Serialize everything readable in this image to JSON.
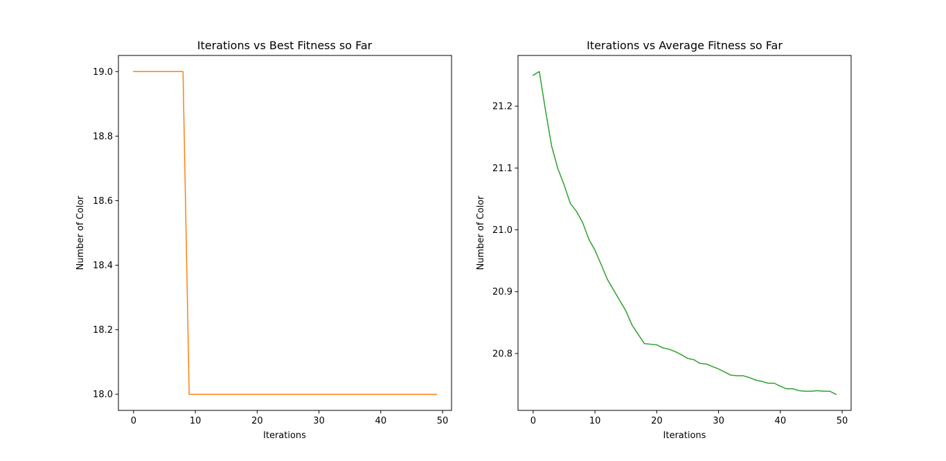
{
  "chart_data": [
    {
      "type": "line",
      "title": "Iterations vs Best Fitness so Far",
      "xlabel": "Iterations",
      "ylabel": "Number of Color",
      "xlim": [
        -2.45,
        51.45
      ],
      "ylim": [
        17.95,
        19.05
      ],
      "xticks": [
        0,
        10,
        20,
        30,
        40,
        50
      ],
      "yticks": [
        18.0,
        18.2,
        18.4,
        18.6,
        18.8,
        19.0
      ],
      "ytick_decimals": 1,
      "grid": false,
      "line_color": "#ff7f0e",
      "series": [
        {
          "x": [
            0,
            1,
            2,
            3,
            4,
            5,
            6,
            7,
            8,
            9,
            10,
            11,
            12,
            13,
            14,
            15,
            16,
            17,
            18,
            19,
            20,
            21,
            22,
            23,
            24,
            25,
            26,
            27,
            28,
            29,
            30,
            31,
            32,
            33,
            34,
            35,
            36,
            37,
            38,
            39,
            40,
            41,
            42,
            43,
            44,
            45,
            46,
            47,
            48,
            49
          ],
          "values": [
            19,
            19,
            19,
            19,
            19,
            19,
            19,
            19,
            19,
            18,
            18,
            18,
            18,
            18,
            18,
            18,
            18,
            18,
            18,
            18,
            18,
            18,
            18,
            18,
            18,
            18,
            18,
            18,
            18,
            18,
            18,
            18,
            18,
            18,
            18,
            18,
            18,
            18,
            18,
            18,
            18,
            18,
            18,
            18,
            18,
            18,
            18,
            18,
            18,
            18
          ]
        }
      ]
    },
    {
      "type": "line",
      "title": "Iterations vs Average Fitness so Far",
      "xlabel": "Iterations",
      "ylabel": "Number of Color",
      "xlim": [
        -2.45,
        51.45
      ],
      "ylim": [
        20.708,
        21.282
      ],
      "xticks": [
        0,
        10,
        20,
        30,
        40,
        50
      ],
      "yticks": [
        20.8,
        20.9,
        21.0,
        21.1,
        21.2
      ],
      "ytick_decimals": 1,
      "grid": false,
      "line_color": "#2ca02c",
      "series": [
        {
          "x": [
            0,
            1,
            2,
            3,
            4,
            5,
            6,
            7,
            8,
            9,
            10,
            11,
            12,
            13,
            14,
            15,
            16,
            17,
            18,
            19,
            20,
            21,
            22,
            23,
            24,
            25,
            26,
            27,
            28,
            29,
            30,
            31,
            32,
            33,
            34,
            35,
            36,
            37,
            38,
            39,
            40,
            41,
            42,
            43,
            44,
            45,
            46,
            47,
            48,
            49
          ],
          "values": [
            21.25,
            21.256,
            21.193,
            21.135,
            21.099,
            21.073,
            21.043,
            21.03,
            21.012,
            20.985,
            20.967,
            20.944,
            20.92,
            20.903,
            20.886,
            20.869,
            20.846,
            20.831,
            20.816,
            20.815,
            20.814,
            20.809,
            20.807,
            20.803,
            20.798,
            20.792,
            20.79,
            20.784,
            20.783,
            20.779,
            20.775,
            20.77,
            20.765,
            20.764,
            20.764,
            20.761,
            20.757,
            20.755,
            20.752,
            20.752,
            20.747,
            20.743,
            20.743,
            20.74,
            20.739,
            20.739,
            20.74,
            20.739,
            20.739,
            20.734
          ]
        }
      ]
    }
  ]
}
